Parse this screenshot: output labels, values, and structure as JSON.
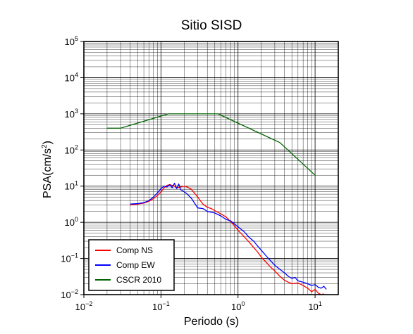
{
  "chart_data": {
    "type": "line",
    "title": "Sitio SISD",
    "xlabel": "Periodo (s)",
    "ylabel": {
      "base": "PSA(cm/s",
      "sup": "2",
      "close": ")"
    },
    "xscale": "log",
    "yscale": "log",
    "xlim": [
      0.01,
      20
    ],
    "ylim": [
      0.01,
      100000
    ],
    "x_ticks": [
      {
        "value": 0.01,
        "base": "10",
        "exp": "−2"
      },
      {
        "value": 0.1,
        "base": "10",
        "exp": "−1"
      },
      {
        "value": 1,
        "base": "10",
        "exp": "0"
      },
      {
        "value": 10,
        "base": "10",
        "exp": "1"
      }
    ],
    "y_ticks": [
      {
        "value": 0.01,
        "base": "10",
        "exp": "−2"
      },
      {
        "value": 0.1,
        "base": "10",
        "exp": "−1"
      },
      {
        "value": 1,
        "base": "10",
        "exp": "0"
      },
      {
        "value": 10,
        "base": "10",
        "exp": "1"
      },
      {
        "value": 100,
        "base": "10",
        "exp": "2"
      },
      {
        "value": 1000,
        "base": "10",
        "exp": "3"
      },
      {
        "value": 10000,
        "base": "10",
        "exp": "4"
      },
      {
        "value": 100000,
        "base": "10",
        "exp": "5"
      }
    ],
    "grid": true,
    "legend_position": "bottom-left",
    "series": [
      {
        "name": "Comp NS",
        "color": "#ff0000",
        "x": [
          0.04,
          0.05,
          0.06,
          0.07,
          0.08,
          0.09,
          0.1,
          0.11,
          0.12,
          0.13,
          0.14,
          0.15,
          0.16,
          0.18,
          0.2,
          0.22,
          0.25,
          0.3,
          0.35,
          0.4,
          0.45,
          0.5,
          0.6,
          0.7,
          0.8,
          0.9,
          1.0,
          1.2,
          1.4,
          1.6,
          1.8,
          2.0,
          2.3,
          2.6,
          3.0,
          3.5,
          4.0,
          4.5,
          5.0,
          6.0,
          7.0,
          8.0,
          9.0,
          10.0,
          11.0,
          12.0,
          13.0
        ],
        "y": [
          3.0,
          3.2,
          3.4,
          3.8,
          4.5,
          5.5,
          7.0,
          9.0,
          10.5,
          11.0,
          10.5,
          10.0,
          9.0,
          9.5,
          10.0,
          9.5,
          8.0,
          5.0,
          3.2,
          2.6,
          2.4,
          2.1,
          1.7,
          1.4,
          1.05,
          0.8,
          0.6,
          0.4,
          0.28,
          0.2,
          0.15,
          0.11,
          0.08,
          0.06,
          0.045,
          0.032,
          0.025,
          0.022,
          0.02,
          0.021,
          0.018,
          0.015,
          0.012,
          0.014,
          0.011,
          0.01,
          0.0105
        ]
      },
      {
        "name": "Comp EW",
        "color": "#0000ff",
        "x": [
          0.04,
          0.05,
          0.06,
          0.07,
          0.08,
          0.09,
          0.1,
          0.11,
          0.12,
          0.13,
          0.14,
          0.15,
          0.16,
          0.17,
          0.18,
          0.2,
          0.22,
          0.25,
          0.3,
          0.35,
          0.4,
          0.45,
          0.5,
          0.6,
          0.7,
          0.8,
          0.9,
          1.0,
          1.2,
          1.4,
          1.6,
          1.8,
          2.0,
          2.3,
          2.6,
          3.0,
          3.5,
          4.0,
          4.5,
          5.0,
          5.5,
          6.0,
          7.0,
          8.0,
          9.0,
          10.0,
          11.0,
          12.0,
          13.0,
          14.0
        ],
        "y": [
          3.2,
          3.3,
          3.5,
          4.0,
          5.0,
          6.5,
          8.5,
          10.0,
          9.5,
          11.0,
          9.0,
          12.0,
          8.5,
          11.5,
          8.0,
          7.0,
          6.0,
          4.5,
          2.5,
          2.4,
          2.0,
          1.9,
          1.8,
          1.5,
          1.2,
          1.1,
          0.9,
          0.75,
          0.55,
          0.38,
          0.3,
          0.22,
          0.17,
          0.12,
          0.09,
          0.065,
          0.05,
          0.04,
          0.032,
          0.028,
          0.03,
          0.024,
          0.022,
          0.02,
          0.018,
          0.019,
          0.016,
          0.015,
          0.017,
          0.014
        ]
      },
      {
        "name": "CSCR 2010",
        "color": "#006400",
        "x": [
          0.02,
          0.03,
          0.125,
          0.55,
          3.5,
          10.0
        ],
        "y": [
          400,
          400,
          1000,
          1000,
          160,
          20
        ]
      }
    ]
  }
}
